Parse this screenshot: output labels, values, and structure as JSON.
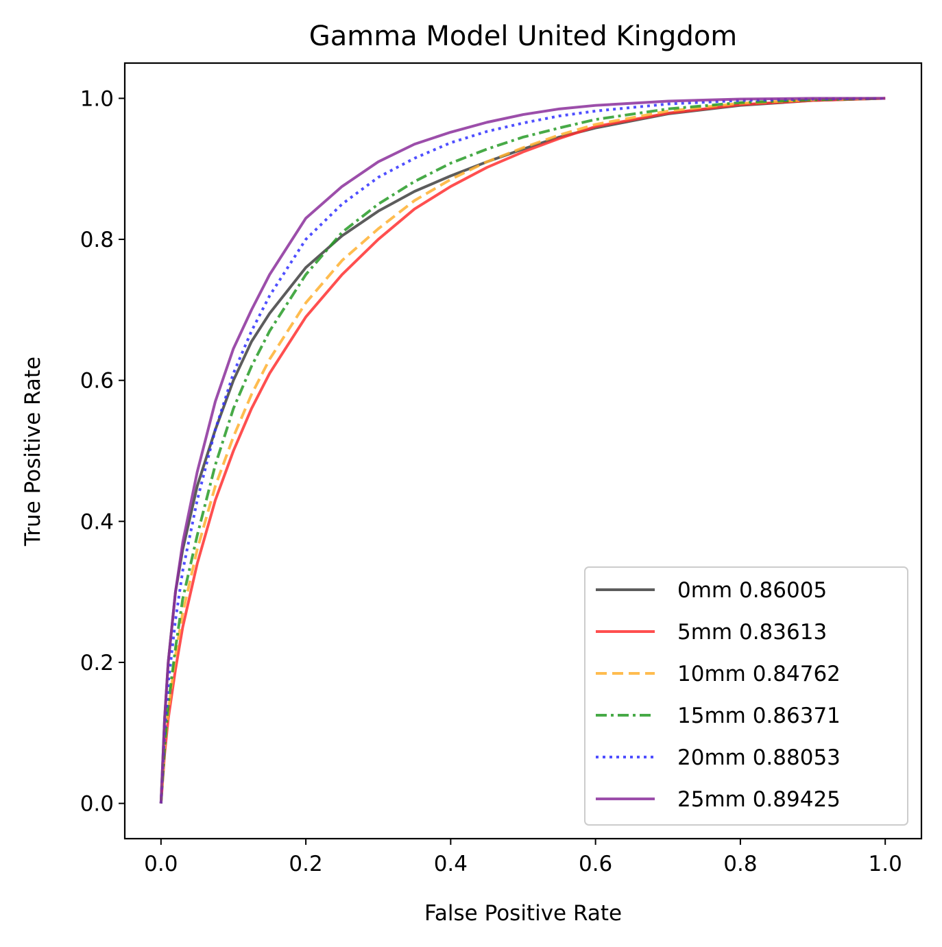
{
  "chart_data": {
    "type": "line",
    "title": "Gamma Model United Kingdom",
    "xlabel": "False Positive Rate",
    "ylabel": "True Positive Rate",
    "xlim": [
      -0.05,
      1.05
    ],
    "ylim": [
      -0.05,
      1.05
    ],
    "xticks": [
      0.0,
      0.2,
      0.4,
      0.6,
      0.8,
      1.0
    ],
    "xtick_labels": [
      "0.0",
      "0.2",
      "0.4",
      "0.6",
      "0.8",
      "1.0"
    ],
    "yticks": [
      0.0,
      0.2,
      0.4,
      0.6,
      0.8,
      1.0
    ],
    "ytick_labels": [
      "0.0",
      "0.2",
      "0.4",
      "0.6",
      "0.8",
      "1.0"
    ],
    "grid": false,
    "legend_position": "lower-right",
    "series": [
      {
        "name": "0mm 0.86005",
        "color": "#404040",
        "dash": "solid",
        "x": [
          0,
          0.005,
          0.01,
          0.02,
          0.03,
          0.05,
          0.075,
          0.1,
          0.125,
          0.15,
          0.2,
          0.25,
          0.3,
          0.35,
          0.4,
          0.45,
          0.5,
          0.55,
          0.6,
          0.7,
          0.8,
          0.9,
          1.0
        ],
        "y": [
          0,
          0.12,
          0.2,
          0.3,
          0.36,
          0.45,
          0.53,
          0.6,
          0.655,
          0.695,
          0.76,
          0.805,
          0.84,
          0.868,
          0.89,
          0.91,
          0.928,
          0.945,
          0.958,
          0.978,
          0.99,
          0.997,
          1.0
        ]
      },
      {
        "name": "5mm 0.83613",
        "color": "#ff3030",
        "dash": "solid",
        "x": [
          0,
          0.005,
          0.01,
          0.02,
          0.03,
          0.05,
          0.075,
          0.1,
          0.125,
          0.15,
          0.2,
          0.25,
          0.3,
          0.35,
          0.4,
          0.45,
          0.5,
          0.55,
          0.6,
          0.7,
          0.8,
          0.9,
          1.0
        ],
        "y": [
          0,
          0.07,
          0.12,
          0.19,
          0.25,
          0.34,
          0.43,
          0.5,
          0.56,
          0.61,
          0.69,
          0.75,
          0.8,
          0.843,
          0.875,
          0.902,
          0.924,
          0.943,
          0.96,
          0.979,
          0.991,
          0.997,
          1.0
        ]
      },
      {
        "name": "10mm 0.84762",
        "color": "#ffb030",
        "dash": "dashed",
        "x": [
          0,
          0.005,
          0.01,
          0.02,
          0.03,
          0.05,
          0.075,
          0.1,
          0.125,
          0.15,
          0.2,
          0.25,
          0.3,
          0.35,
          0.4,
          0.45,
          0.5,
          0.55,
          0.6,
          0.7,
          0.8,
          0.9,
          1.0
        ],
        "y": [
          0,
          0.08,
          0.13,
          0.21,
          0.27,
          0.36,
          0.45,
          0.52,
          0.58,
          0.63,
          0.71,
          0.77,
          0.815,
          0.855,
          0.885,
          0.91,
          0.93,
          0.948,
          0.963,
          0.982,
          0.993,
          0.998,
          1.0
        ]
      },
      {
        "name": "15mm 0.86371",
        "color": "#279b27",
        "dash": "dashdot",
        "x": [
          0,
          0.005,
          0.01,
          0.02,
          0.03,
          0.05,
          0.075,
          0.1,
          0.125,
          0.15,
          0.2,
          0.25,
          0.3,
          0.35,
          0.4,
          0.45,
          0.5,
          0.55,
          0.6,
          0.7,
          0.8,
          0.9,
          1.0
        ],
        "y": [
          0,
          0.08,
          0.14,
          0.22,
          0.29,
          0.38,
          0.48,
          0.56,
          0.62,
          0.67,
          0.75,
          0.81,
          0.85,
          0.882,
          0.908,
          0.928,
          0.945,
          0.958,
          0.97,
          0.985,
          0.994,
          0.998,
          1.0
        ]
      },
      {
        "name": "20mm 0.88053",
        "color": "#3030ff",
        "dash": "dotted",
        "x": [
          0,
          0.005,
          0.01,
          0.02,
          0.03,
          0.05,
          0.075,
          0.1,
          0.125,
          0.15,
          0.2,
          0.25,
          0.3,
          0.35,
          0.4,
          0.45,
          0.5,
          0.55,
          0.6,
          0.7,
          0.8,
          0.9,
          1.0
        ],
        "y": [
          0,
          0.1,
          0.17,
          0.26,
          0.33,
          0.43,
          0.53,
          0.61,
          0.67,
          0.72,
          0.8,
          0.85,
          0.888,
          0.915,
          0.937,
          0.953,
          0.965,
          0.975,
          0.982,
          0.992,
          0.997,
          0.999,
          1.0
        ]
      },
      {
        "name": "25mm 0.89425",
        "color": "#8b2f9b",
        "dash": "solid",
        "x": [
          0,
          0.005,
          0.01,
          0.02,
          0.03,
          0.05,
          0.075,
          0.1,
          0.125,
          0.15,
          0.2,
          0.25,
          0.3,
          0.35,
          0.4,
          0.45,
          0.5,
          0.55,
          0.6,
          0.7,
          0.8,
          0.9,
          1.0
        ],
        "y": [
          0,
          0.12,
          0.2,
          0.3,
          0.37,
          0.47,
          0.57,
          0.645,
          0.7,
          0.75,
          0.83,
          0.875,
          0.91,
          0.935,
          0.952,
          0.966,
          0.977,
          0.985,
          0.99,
          0.996,
          0.999,
          1.0,
          1.0
        ]
      }
    ]
  }
}
